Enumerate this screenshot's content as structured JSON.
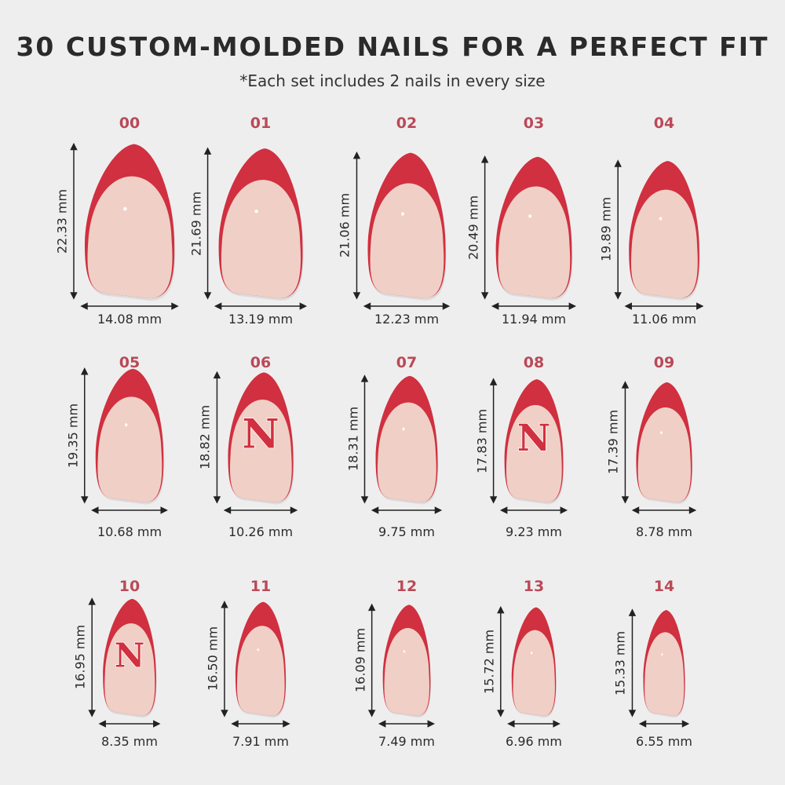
{
  "title": "30 CUSTOM-MOLDED NAILS FOR A PERFECT FIT",
  "subtitle": "*Each set includes 2 nails in every size",
  "colors": {
    "tip_red": "#d0303f",
    "nail_pink": "#f0cfc6",
    "label_red": "#b94a57",
    "background": "#efeeef"
  },
  "logo_letter": "N",
  "nails": [
    {
      "size": "00",
      "height": "22.33 mm",
      "width": "14.08 mm",
      "h": 22.33,
      "w": 14.08,
      "logo": false
    },
    {
      "size": "01",
      "height": "21.69 mm",
      "width": "13.19 mm",
      "h": 21.69,
      "w": 13.19,
      "logo": false
    },
    {
      "size": "02",
      "height": "21.06 mm",
      "width": "12.23 mm",
      "h": 21.06,
      "w": 12.23,
      "logo": false
    },
    {
      "size": "03",
      "height": "20.49 mm",
      "width": "11.94 mm",
      "h": 20.49,
      "w": 11.94,
      "logo": false
    },
    {
      "size": "04",
      "height": "19.89 mm",
      "width": "11.06 mm",
      "h": 19.89,
      "w": 11.06,
      "logo": false
    },
    {
      "size": "05",
      "height": "19.35 mm",
      "width": "10.68 mm",
      "h": 19.35,
      "w": 10.68,
      "logo": false
    },
    {
      "size": "06",
      "height": "18.82 mm",
      "width": "10.26 mm",
      "h": 18.82,
      "w": 10.26,
      "logo": true
    },
    {
      "size": "07",
      "height": "18.31 mm",
      "width": "9.75 mm",
      "h": 18.31,
      "w": 9.75,
      "logo": false
    },
    {
      "size": "08",
      "height": "17.83 mm",
      "width": "9.23 mm",
      "h": 17.83,
      "w": 9.23,
      "logo": true
    },
    {
      "size": "09",
      "height": "17.39 mm",
      "width": "8.78 mm",
      "h": 17.39,
      "w": 8.78,
      "logo": false
    },
    {
      "size": "10",
      "height": "16.95 mm",
      "width": "8.35 mm",
      "h": 16.95,
      "w": 8.35,
      "logo": true
    },
    {
      "size": "11",
      "height": "16.50 mm",
      "width": "7.91 mm",
      "h": 16.5,
      "w": 7.91,
      "logo": false
    },
    {
      "size": "12",
      "height": "16.09 mm",
      "width": "7.49 mm",
      "h": 16.09,
      "w": 7.49,
      "logo": false
    },
    {
      "size": "13",
      "height": "15.72 mm",
      "width": "6.96 mm",
      "h": 15.72,
      "w": 6.96,
      "logo": false
    },
    {
      "size": "14",
      "height": "15.33 mm",
      "width": "6.55 mm",
      "h": 15.33,
      "w": 6.55,
      "logo": false
    }
  ]
}
